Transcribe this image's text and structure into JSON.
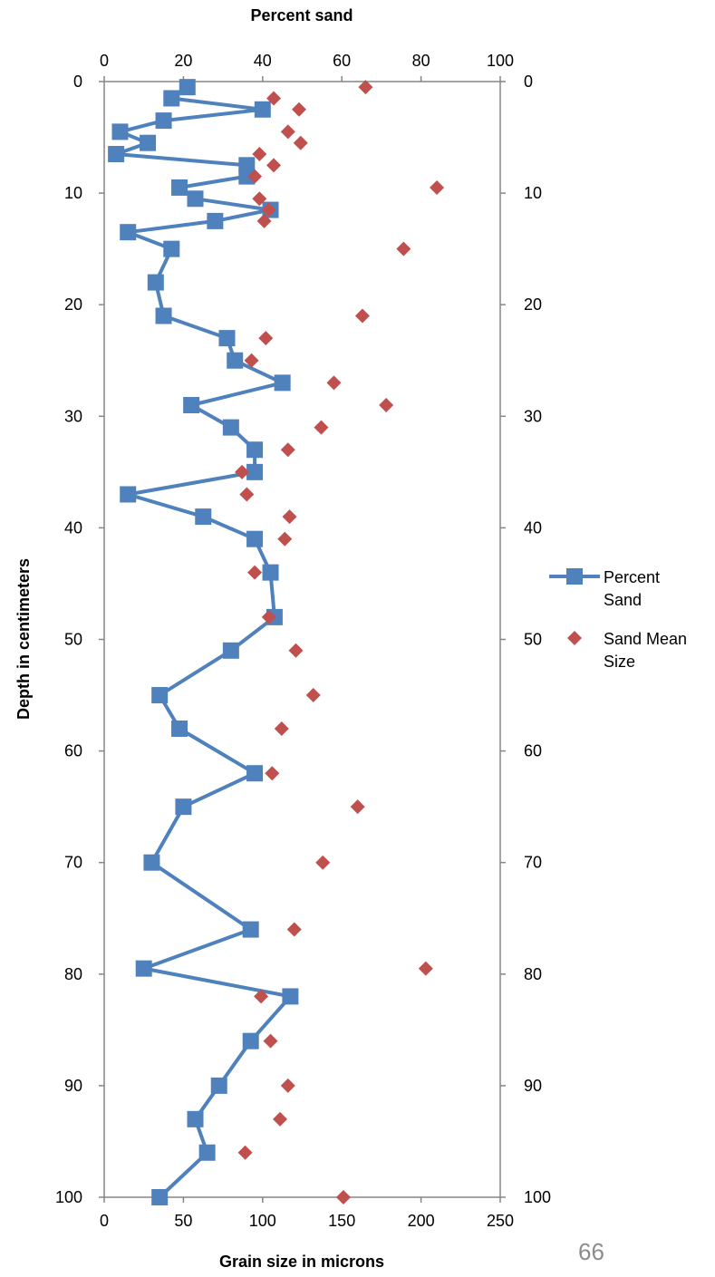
{
  "chart_data": {
    "type": "scatter",
    "top_axis": {
      "label": "Percent sand",
      "range": [
        0,
        100
      ],
      "ticks": [
        0,
        20,
        40,
        60,
        80,
        100
      ]
    },
    "bottom_axis": {
      "label": "Grain size in microns",
      "range": [
        0,
        250
      ],
      "ticks": [
        0,
        50,
        100,
        150,
        200,
        250
      ]
    },
    "left_axis": {
      "label": "Depth in centimeters",
      "range": [
        0,
        100
      ],
      "ticks": [
        0,
        10,
        20,
        30,
        40,
        50,
        60,
        70,
        80,
        90,
        100
      ],
      "inverted": true
    },
    "right_axis": {
      "label": "",
      "range": [
        0,
        100
      ],
      "ticks": [
        0,
        10,
        20,
        30,
        40,
        50,
        60,
        70,
        80,
        90,
        100
      ],
      "inverted": true
    },
    "legend_position": "right",
    "grid": false,
    "series": [
      {
        "name": "Percent Sand",
        "axis": "top",
        "type": "line",
        "marker": "square",
        "color": "#4f81bd",
        "points": [
          {
            "x": 21,
            "y": 0.5
          },
          {
            "x": 17,
            "y": 1.5
          },
          {
            "x": 40,
            "y": 2.5
          },
          {
            "x": 15,
            "y": 3.5
          },
          {
            "x": 4,
            "y": 4.5
          },
          {
            "x": 11,
            "y": 5.5
          },
          {
            "x": 3,
            "y": 6.5
          },
          {
            "x": 36,
            "y": 7.5
          },
          {
            "x": 36,
            "y": 8.5
          },
          {
            "x": 19,
            "y": 9.5
          },
          {
            "x": 23,
            "y": 10.5
          },
          {
            "x": 42,
            "y": 11.5
          },
          {
            "x": 28,
            "y": 12.5
          },
          {
            "x": 6,
            "y": 13.5
          },
          {
            "x": 17,
            "y": 15
          },
          {
            "x": 13,
            "y": 18
          },
          {
            "x": 15,
            "y": 21
          },
          {
            "x": 31,
            "y": 23
          },
          {
            "x": 33,
            "y": 25
          },
          {
            "x": 45,
            "y": 27
          },
          {
            "x": 22,
            "y": 29
          },
          {
            "x": 32,
            "y": 31
          },
          {
            "x": 38,
            "y": 33
          },
          {
            "x": 38,
            "y": 35
          },
          {
            "x": 6,
            "y": 37
          },
          {
            "x": 25,
            "y": 39
          },
          {
            "x": 38,
            "y": 41
          },
          {
            "x": 42,
            "y": 44
          },
          {
            "x": 43,
            "y": 48
          },
          {
            "x": 32,
            "y": 51
          },
          {
            "x": 14,
            "y": 55
          },
          {
            "x": 19,
            "y": 58
          },
          {
            "x": 38,
            "y": 62
          },
          {
            "x": 20,
            "y": 65
          },
          {
            "x": 12,
            "y": 70
          },
          {
            "x": 37,
            "y": 76
          },
          {
            "x": 10,
            "y": 79.5
          },
          {
            "x": 47,
            "y": 82
          },
          {
            "x": 37,
            "y": 86
          },
          {
            "x": 29,
            "y": 90
          },
          {
            "x": 23,
            "y": 93
          },
          {
            "x": 26,
            "y": 96
          },
          {
            "x": 14,
            "y": 100
          }
        ]
      },
      {
        "name": "Sand Mean Size",
        "axis": "bottom",
        "type": "scatter",
        "marker": "diamond",
        "color": "#c0504d",
        "points": [
          {
            "x": 165,
            "y": 0.5
          },
          {
            "x": 107,
            "y": 1.5
          },
          {
            "x": 123,
            "y": 2.5
          },
          {
            "x": 116,
            "y": 4.5
          },
          {
            "x": 124,
            "y": 5.5
          },
          {
            "x": 98,
            "y": 6.5
          },
          {
            "x": 107,
            "y": 7.5
          },
          {
            "x": 95,
            "y": 8.5
          },
          {
            "x": 210,
            "y": 9.5
          },
          {
            "x": 98,
            "y": 10.5
          },
          {
            "x": 104,
            "y": 11.5
          },
          {
            "x": 101,
            "y": 12.5
          },
          {
            "x": 189,
            "y": 15
          },
          {
            "x": 163,
            "y": 21
          },
          {
            "x": 102,
            "y": 23
          },
          {
            "x": 93,
            "y": 25
          },
          {
            "x": 145,
            "y": 27
          },
          {
            "x": 178,
            "y": 29
          },
          {
            "x": 137,
            "y": 31
          },
          {
            "x": 116,
            "y": 33
          },
          {
            "x": 87,
            "y": 35
          },
          {
            "x": 90,
            "y": 37
          },
          {
            "x": 117,
            "y": 39
          },
          {
            "x": 114,
            "y": 41
          },
          {
            "x": 95,
            "y": 44
          },
          {
            "x": 104,
            "y": 48
          },
          {
            "x": 121,
            "y": 51
          },
          {
            "x": 132,
            "y": 55
          },
          {
            "x": 112,
            "y": 58
          },
          {
            "x": 106,
            "y": 62
          },
          {
            "x": 160,
            "y": 65
          },
          {
            "x": 138,
            "y": 70
          },
          {
            "x": 120,
            "y": 76
          },
          {
            "x": 203,
            "y": 79.5
          },
          {
            "x": 99,
            "y": 82
          },
          {
            "x": 105,
            "y": 86
          },
          {
            "x": 116,
            "y": 90
          },
          {
            "x": 111,
            "y": 93
          },
          {
            "x": 89,
            "y": 96
          },
          {
            "x": 151,
            "y": 100
          }
        ]
      }
    ]
  },
  "page_number": "66"
}
